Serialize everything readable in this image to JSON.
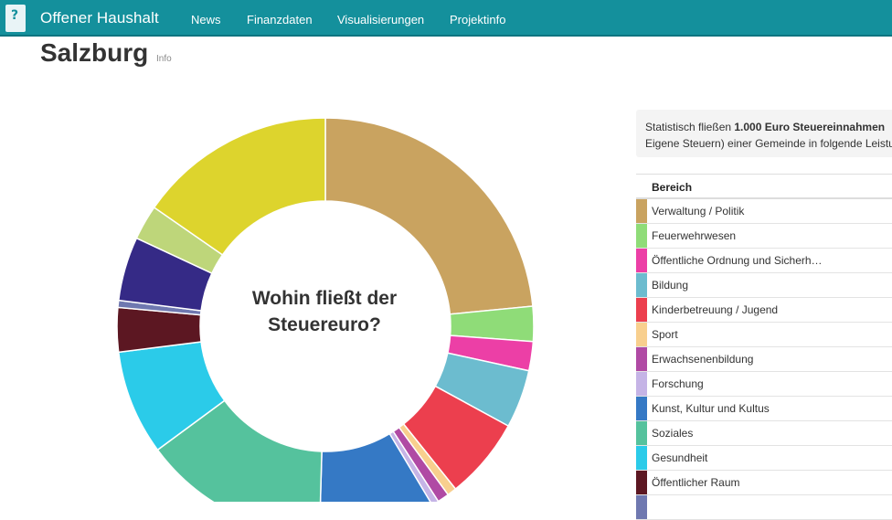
{
  "navbar": {
    "logo_icon": "offener-haushalt-logo",
    "brand": "Offener Haushalt",
    "items": [
      "News",
      "Finanzdaten",
      "Visualisierungen",
      "Projektinfo"
    ]
  },
  "page": {
    "title": "Salzburg",
    "info_link": "Info"
  },
  "chart_data": {
    "type": "pie",
    "title": "Wohin fließt der Steuereuro?",
    "slices": [
      {
        "label": "Verwaltung / Politik",
        "value": 26.0,
        "color": "#c9a360"
      },
      {
        "label": "Feuerwehrwesen",
        "value": 3.0,
        "color": "#8fdc78"
      },
      {
        "label": "Öffentliche Ordnung und Sicherh…",
        "value": 2.5,
        "color": "#ec3fa6"
      },
      {
        "label": "Bildung",
        "value": 5.0,
        "color": "#6cbccf"
      },
      {
        "label": "Kinderbetreuung / Jugend",
        "value": 7.0,
        "color": "#ec3f4e"
      },
      {
        "label": "Sport",
        "value": 0.8,
        "color": "#f8cf8e"
      },
      {
        "label": "Erwachsenenbildung",
        "value": 1.0,
        "color": "#b04aa4"
      },
      {
        "label": "Forschung",
        "value": 0.6,
        "color": "#c5b4e6"
      },
      {
        "label": "Kunst, Kultur und Kultus",
        "value": 10.0,
        "color": "#3579c5"
      },
      {
        "label": "Soziales",
        "value": 16.0,
        "color": "#55c29d"
      },
      {
        "label": "Gesundheit",
        "value": 9.0,
        "color": "#2bcbe9"
      },
      {
        "label": "Öffentlicher Raum",
        "value": 3.8,
        "color": "#5c1722"
      },
      {
        "label": "",
        "value": 0.6,
        "color": "#6f78b0"
      },
      {
        "label": "",
        "value": 5.5,
        "color": "#352a86"
      },
      {
        "label": "",
        "value": 3.0,
        "color": "#bed67a"
      },
      {
        "label": "",
        "value": 17.0,
        "color": "#ddd42d"
      }
    ]
  },
  "info_box": {
    "prefix": "Statistisch fließen ",
    "bold": "1.000 Euro Steuereinnahmen",
    "line2": "Eigene Steuern) einer Gemeinde in folgende Leistungen"
  },
  "table": {
    "header": "Bereich",
    "rows": [
      {
        "label": "Verwaltung / Politik",
        "color": "#c9a360"
      },
      {
        "label": "Feuerwehrwesen",
        "color": "#8fdc78"
      },
      {
        "label": "Öffentliche Ordnung und Sicherh…",
        "color": "#ec3fa6"
      },
      {
        "label": "Bildung",
        "color": "#6cbccf"
      },
      {
        "label": "Kinderbetreuung / Jugend",
        "color": "#ec3f4e"
      },
      {
        "label": "Sport",
        "color": "#f8cf8e"
      },
      {
        "label": "Erwachsenenbildung",
        "color": "#b04aa4"
      },
      {
        "label": "Forschung",
        "color": "#c5b4e6"
      },
      {
        "label": "Kunst, Kultur und Kultus",
        "color": "#3579c5"
      },
      {
        "label": "Soziales",
        "color": "#55c29d"
      },
      {
        "label": "Gesundheit",
        "color": "#2bcbe9"
      },
      {
        "label": "Öffentlicher Raum",
        "color": "#5c1722"
      },
      {
        "label": "",
        "color": "#6f78b0"
      }
    ]
  }
}
